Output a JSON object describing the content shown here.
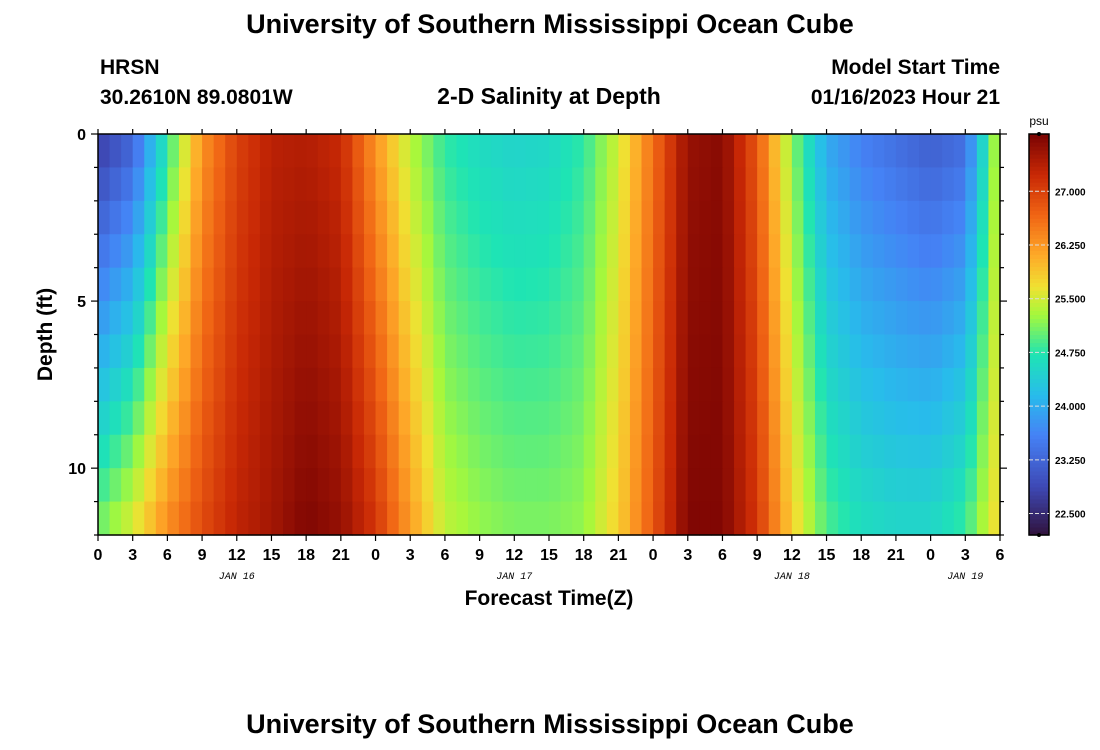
{
  "header": {
    "title": "University of Southern Mississippi Ocean Cube",
    "station": "HRSN",
    "coords": "30.2610N  89.0801W",
    "chart_title": "2-D Salinity at Depth",
    "model_start_label": "Model Start Time",
    "model_start_value": "01/16/2023 Hour 21"
  },
  "footer": {
    "title": "University of Southern Mississippi Ocean Cube"
  },
  "chart_data": {
    "type": "heatmap",
    "title": "2-D Salinity at Depth",
    "xlabel": "Forecast Time(Z)",
    "ylabel": "Depth (ft)",
    "x_unit": "hours from Jan 16 00Z",
    "xlim": [
      0,
      78
    ],
    "ylim": [
      12,
      0
    ],
    "x_ticks": [
      0,
      3,
      6,
      9,
      12,
      15,
      18,
      21,
      24,
      27,
      30,
      33,
      36,
      39,
      42,
      45,
      48,
      51,
      54,
      57,
      60,
      63,
      66,
      69,
      72,
      75,
      78
    ],
    "x_tick_labels": [
      "0",
      "3",
      "6",
      "9",
      "12",
      "15",
      "18",
      "21",
      "0",
      "3",
      "6",
      "9",
      "12",
      "15",
      "18",
      "21",
      "0",
      "3",
      "6",
      "9",
      "12",
      "15",
      "18",
      "21",
      "0",
      "3",
      "6"
    ],
    "y_ticks": [
      0,
      5,
      10
    ],
    "y_tick_labels": [
      "0",
      "5",
      "10"
    ],
    "date_labels": [
      {
        "text": "JAN 16",
        "x": 12
      },
      {
        "text": "JAN 17",
        "x": 36
      },
      {
        "text": "JAN 18",
        "x": 60
      },
      {
        "text": "JAN 19",
        "x": 75
      }
    ],
    "colorbar": {
      "unit": "psu",
      "min": 22.2,
      "max": 27.8,
      "ticks": [
        22.5,
        23.25,
        24.0,
        24.75,
        25.5,
        26.25,
        27.0
      ],
      "tick_labels": [
        "22.500",
        "23.250",
        "24.000",
        "24.750",
        "25.500",
        "26.250",
        "27.000"
      ]
    },
    "depths_ft": [
      0.5,
      1.5,
      2.5,
      3.5,
      4.5,
      5.5,
      6.5,
      7.5,
      8.5,
      9.5,
      10.5,
      11.5
    ],
    "time_keys": [
      0,
      3,
      6,
      9,
      12,
      15,
      18,
      21,
      24,
      27,
      30,
      33,
      36,
      39,
      42,
      45,
      48,
      51,
      54,
      57,
      60,
      63,
      66,
      69,
      72,
      75,
      78
    ],
    "salinity_surface": [
      22.8,
      23.3,
      24.8,
      26.3,
      27.0,
      27.35,
      27.4,
      27.25,
      26.3,
      25.4,
      24.8,
      24.6,
      24.5,
      24.55,
      24.8,
      25.5,
      26.6,
      27.6,
      27.7,
      26.8,
      25.2,
      24.0,
      23.6,
      23.4,
      23.2,
      23.4,
      25.6
    ],
    "salinity_bottom": [
      25.0,
      25.5,
      26.3,
      26.9,
      27.3,
      27.5,
      27.75,
      27.6,
      27.1,
      26.2,
      25.4,
      25.2,
      25.1,
      25.1,
      25.2,
      25.8,
      26.8,
      27.75,
      27.75,
      27.1,
      25.8,
      24.9,
      24.6,
      24.5,
      24.5,
      24.8,
      25.8
    ]
  }
}
